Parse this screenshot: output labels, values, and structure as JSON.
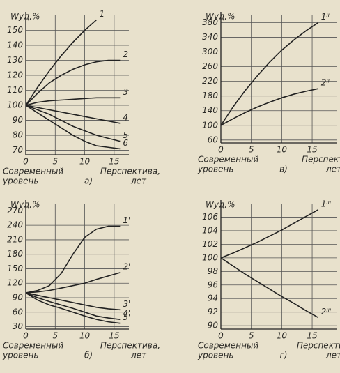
{
  "chart_data": [
    {
      "type": "line",
      "y_label": "Wуд,%",
      "x_label_left": [
        "Современный",
        "уровень"
      ],
      "x_label_right": [
        "Перспектива,",
        "лет"
      ],
      "panel": "а)",
      "x": [
        0,
        2,
        4,
        6,
        8,
        10,
        12,
        14,
        16
      ],
      "xlim": [
        0,
        17.5
      ],
      "xticks": [
        0,
        5,
        10,
        15
      ],
      "ylim": [
        67,
        160
      ],
      "yticks": [
        70,
        80,
        90,
        100,
        110,
        120,
        130,
        140,
        150
      ],
      "series": [
        {
          "name": "1",
          "color": "#222",
          "values": [
            100,
            112,
            123,
            133,
            142,
            150,
            157,
            null,
            null
          ]
        },
        {
          "name": "2",
          "color": "#222",
          "values": [
            100,
            108,
            115,
            120,
            124,
            127,
            129,
            130,
            130
          ]
        },
        {
          "name": "3",
          "color": "#222",
          "values": [
            100,
            102,
            103,
            103.5,
            104,
            104.5,
            105,
            105,
            105
          ]
        },
        {
          "name": "4",
          "color": "#222",
          "values": [
            100,
            98.5,
            97,
            95.5,
            94,
            92.5,
            91,
            89.5,
            88
          ]
        },
        {
          "name": "5",
          "color": "#222",
          "values": [
            100,
            97,
            94,
            90,
            86,
            83,
            80,
            78,
            76
          ]
        },
        {
          "name": "6",
          "color": "#222",
          "values": [
            100,
            95,
            90,
            85,
            80,
            76,
            73,
            72,
            71
          ]
        }
      ]
    },
    {
      "type": "line",
      "y_label": "Wуд,%",
      "x_label_left": [
        "Современный",
        "уровень"
      ],
      "x_label_right": [
        "Перспекти",
        "лет"
      ],
      "panel": "в)",
      "x": [
        0,
        2,
        4,
        6,
        8,
        10,
        12,
        14,
        16
      ],
      "xlim": [
        0,
        19
      ],
      "xticks": [
        0,
        5,
        10,
        15
      ],
      "ylim": [
        52,
        400
      ],
      "yticks": [
        60,
        100,
        140,
        180,
        220,
        260,
        300,
        340,
        380
      ],
      "series": [
        {
          "name": "1ᴵᴵ",
          "color": "#222",
          "values": [
            100,
            150,
            195,
            235,
            272,
            305,
            333,
            358,
            380
          ]
        },
        {
          "name": "2ᴵᴵ",
          "color": "#222",
          "values": [
            100,
            118,
            135,
            150,
            163,
            175,
            185,
            193,
            200
          ]
        }
      ]
    },
    {
      "type": "line",
      "y_label": "Wуд,%",
      "x_label_left": [
        "Современный",
        "уровень"
      ],
      "x_label_right": [
        "Перспектива,",
        "лет"
      ],
      "panel": "б)",
      "x": [
        0,
        2,
        4,
        6,
        8,
        10,
        12,
        14,
        16
      ],
      "xlim": [
        0,
        17.5
      ],
      "xticks": [
        0,
        5,
        10,
        15
      ],
      "ylim": [
        25,
        285
      ],
      "yticks": [
        30,
        60,
        90,
        120,
        150,
        180,
        210,
        240,
        270
      ],
      "series": [
        {
          "name": "1'",
          "color": "#222",
          "values": [
            100,
            105,
            115,
            140,
            180,
            215,
            232,
            238,
            238
          ]
        },
        {
          "name": "2'",
          "color": "#222",
          "values": [
            100,
            102,
            105,
            110,
            115,
            120,
            128,
            135,
            142
          ]
        },
        {
          "name": "3'",
          "color": "#222",
          "values": [
            100,
            95,
            90,
            85,
            80,
            75,
            70,
            67,
            65
          ]
        },
        {
          "name": "4'",
          "color": "#222",
          "values": [
            100,
            90,
            82,
            75,
            68,
            60,
            52,
            48,
            45
          ]
        },
        {
          "name": "5'",
          "color": "#222",
          "values": [
            100,
            85,
            75,
            68,
            60,
            52,
            45,
            40,
            37
          ]
        }
      ]
    },
    {
      "type": "line",
      "y_label": "Wуд,%",
      "x_label_left": [
        "Современный",
        "уровень"
      ],
      "x_label_right": [
        "Перспектива",
        "лет"
      ],
      "panel": "г)",
      "x": [
        0,
        2,
        4,
        6,
        8,
        10,
        12,
        14,
        16
      ],
      "xlim": [
        0,
        19
      ],
      "xticks": [
        0,
        5,
        10,
        15
      ],
      "ylim": [
        89.5,
        108
      ],
      "yticks": [
        90,
        92,
        94,
        96,
        98,
        100,
        102,
        104,
        106
      ],
      "series": [
        {
          "name": "1ᴵᴵᴵ",
          "color": "#222",
          "values": [
            100,
            100.7,
            101.5,
            102.3,
            103.2,
            104.1,
            105.1,
            106.1,
            107.1
          ]
        },
        {
          "name": "2ᴵᴵᴵ",
          "color": "#222",
          "values": [
            100,
            98.8,
            97.6,
            96.5,
            95.4,
            94.3,
            93.3,
            92.2,
            91.2
          ]
        }
      ]
    }
  ]
}
